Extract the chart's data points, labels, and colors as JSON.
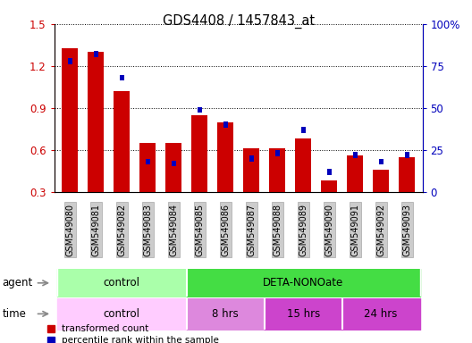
{
  "title": "GDS4408 / 1457843_at",
  "samples": [
    "GSM549080",
    "GSM549081",
    "GSM549082",
    "GSM549083",
    "GSM549084",
    "GSM549085",
    "GSM549086",
    "GSM549087",
    "GSM549088",
    "GSM549089",
    "GSM549090",
    "GSM549091",
    "GSM549092",
    "GSM549093"
  ],
  "red_values": [
    1.33,
    1.3,
    1.02,
    0.65,
    0.65,
    0.85,
    0.8,
    0.61,
    0.61,
    0.68,
    0.38,
    0.56,
    0.46,
    0.55
  ],
  "blue_values": [
    78,
    82,
    68,
    18,
    17,
    49,
    40,
    20,
    23,
    37,
    12,
    22,
    18,
    22
  ],
  "ylim_left": [
    0.3,
    1.5
  ],
  "ylim_right": [
    0,
    100
  ],
  "yticks_left": [
    0.3,
    0.6,
    0.9,
    1.2,
    1.5
  ],
  "yticks_right": [
    0,
    25,
    50,
    75,
    100
  ],
  "left_axis_color": "#cc0000",
  "right_axis_color": "#0000bb",
  "bar_color_red": "#cc0000",
  "bar_color_blue": "#0000bb",
  "agent_control_color": "#aaffaa",
  "agent_deta_color": "#44dd44",
  "time_control_color": "#ffccff",
  "time_8hrs_color": "#dd88dd",
  "time_15hrs_color": "#cc44cc",
  "time_24hrs_color": "#cc44cc",
  "xticklabel_bg": "#cccccc",
  "legend_red": "transformed count",
  "legend_blue": "percentile rank within the sample"
}
